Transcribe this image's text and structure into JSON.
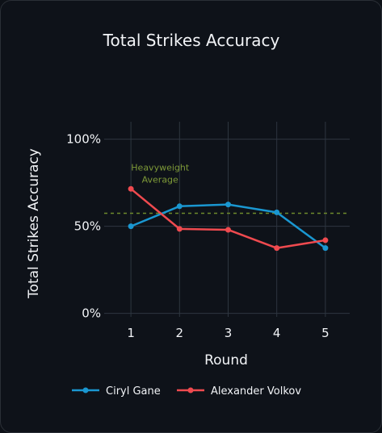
{
  "chart_data": {
    "type": "line",
    "title": "Total Strikes Accuracy",
    "xlabel": "Round",
    "ylabel": "Total Strikes Accuracy",
    "x": [
      1,
      2,
      3,
      4,
      5
    ],
    "xlim": [
      0.45,
      5.5
    ],
    "ylim": [
      -0.02,
      1.1
    ],
    "yticks": [
      0,
      0.5,
      1.0
    ],
    "ytick_labels": [
      "0%",
      "50%",
      "100%"
    ],
    "xtick_labels": [
      "1",
      "2",
      "3",
      "4",
      "5"
    ],
    "series": [
      {
        "name": "Ciryl Gane",
        "color": "#1a97d1",
        "values": [
          0.5,
          0.615,
          0.625,
          0.58,
          0.375
        ]
      },
      {
        "name": "Alexander Volkov",
        "color": "#ef4a4f",
        "values": [
          0.715,
          0.485,
          0.48,
          0.375,
          0.42
        ]
      }
    ],
    "reference_line": {
      "value": 0.575,
      "color": "#6e8a2c",
      "style": "dashed",
      "label_lines": [
        "Heavyweight",
        "Average"
      ]
    },
    "grid": true,
    "legend": "bottom"
  },
  "colors": {
    "background": "#0e1219",
    "grid": "#2e3640",
    "text": "#f2f4f7"
  }
}
